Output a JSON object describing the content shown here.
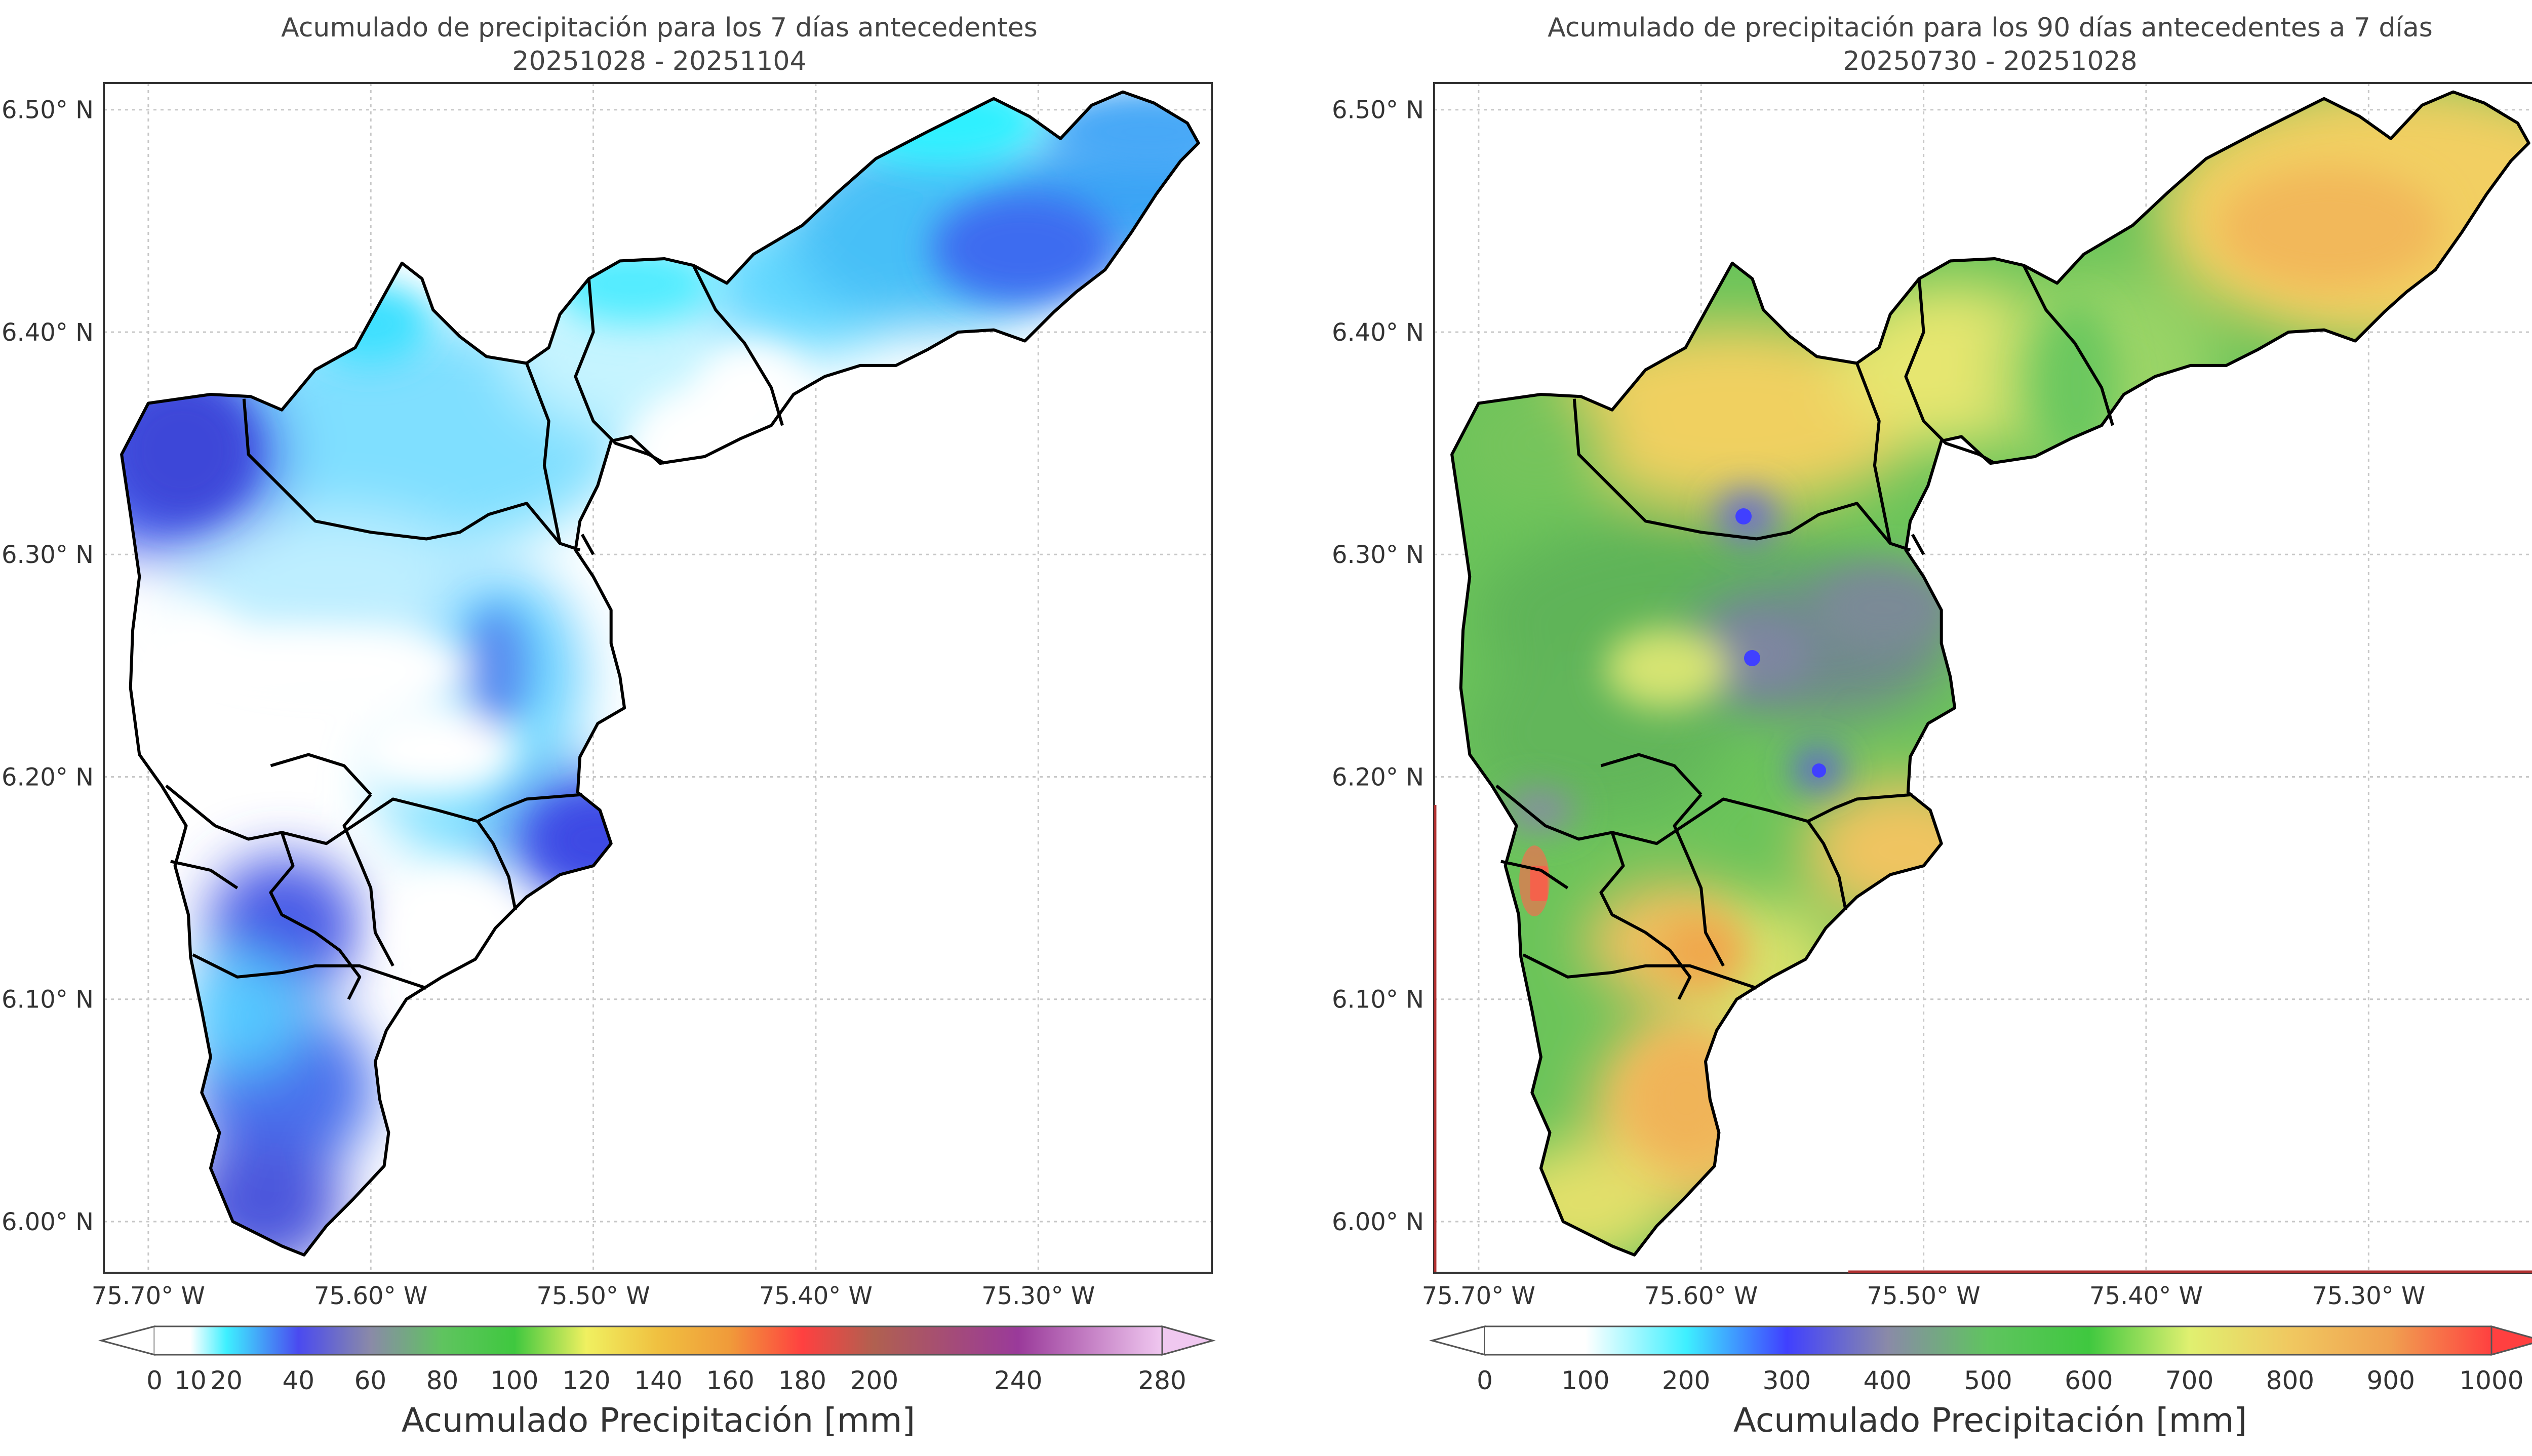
{
  "panels": [
    {
      "title_line1": "Acumulado de precipitación para los 7 días antecedentes",
      "title_line2": "20251028 - 20251104",
      "colorbar_label": "Acumulado Precipitación [mm]",
      "colorbar_ticks": [
        "0",
        "10",
        "20",
        "40",
        "60",
        "80",
        "100",
        "120",
        "140",
        "160",
        "180",
        "200",
        "240",
        "280"
      ],
      "colorbar_tick_values": [
        0,
        10,
        20,
        40,
        60,
        80,
        100,
        120,
        140,
        160,
        180,
        200,
        240,
        280
      ],
      "colorbar_range": [
        0,
        280
      ],
      "colorbar_colors": [
        "#ffffff",
        "#ffffff",
        "#3ef0ff",
        "#4a4af0",
        "#8a8aa8",
        "#5fc45f",
        "#3fc83f",
        "#f0f060",
        "#f0c040",
        "#f09a3a",
        "#ff4040",
        "#b06050",
        "#9a3a9a",
        "#f0c8f0"
      ],
      "extend": "both"
    },
    {
      "title_line1": "Acumulado de precipitación para los 90 días antecedentes a 7 días",
      "title_line2": "20250730 - 20251028",
      "colorbar_label": "Acumulado Precipitación [mm]",
      "colorbar_ticks": [
        "0",
        "100",
        "200",
        "300",
        "400",
        "500",
        "600",
        "700",
        "800",
        "900",
        "1000"
      ],
      "colorbar_tick_values": [
        0,
        100,
        200,
        300,
        400,
        500,
        600,
        700,
        800,
        900,
        1000
      ],
      "colorbar_range": [
        0,
        1000
      ],
      "colorbar_colors": [
        "#ffffff",
        "#ffffff",
        "#3ef0ff",
        "#4040ff",
        "#8a8aa8",
        "#5fc45f",
        "#3fc83f",
        "#e0f070",
        "#f0c860",
        "#f0a050",
        "#ff4040"
      ],
      "extend": "both"
    }
  ],
  "axes": {
    "lat_labels": [
      "6.50° N",
      "6.40° N",
      "6.30° N",
      "6.20° N",
      "6.10° N",
      "6.00° N"
    ],
    "lat_values": [
      6.5,
      6.4,
      6.3,
      6.2,
      6.1,
      6.0
    ],
    "lon_labels": [
      "75.70° W",
      "75.60° W",
      "75.50° W",
      "75.40° W",
      "75.30° W"
    ],
    "lon_values": [
      -75.7,
      -75.6,
      -75.5,
      -75.4,
      -75.3
    ],
    "lat_range": [
      5.977,
      6.512
    ],
    "lon_range": [
      -75.72,
      -75.222
    ]
  },
  "colors": {
    "frame": "#333333",
    "border": "#000000",
    "grid": "#c8c8c8"
  }
}
